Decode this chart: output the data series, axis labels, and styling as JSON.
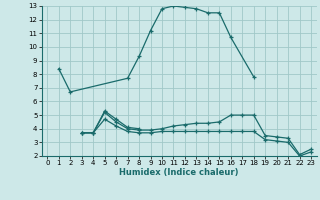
{
  "xlabel": "Humidex (Indice chaleur)",
  "xlim": [
    -0.5,
    23.5
  ],
  "ylim": [
    2,
    13
  ],
  "xticks": [
    0,
    1,
    2,
    3,
    4,
    5,
    6,
    7,
    8,
    9,
    10,
    11,
    12,
    13,
    14,
    15,
    16,
    17,
    18,
    19,
    20,
    21,
    22,
    23
  ],
  "yticks": [
    2,
    3,
    4,
    5,
    6,
    7,
    8,
    9,
    10,
    11,
    12,
    13
  ],
  "bg_color": "#cde8e8",
  "grid_color": "#a0c8c8",
  "line_color": "#1a6b6b",
  "line1_x": [
    1,
    2,
    7,
    8,
    9,
    10,
    11,
    12,
    13,
    14,
    15,
    16,
    18
  ],
  "line1_y": [
    8.4,
    6.7,
    7.7,
    9.3,
    11.2,
    12.8,
    13.0,
    12.9,
    12.8,
    12.5,
    12.5,
    10.7,
    7.8
  ],
  "line2_x": [
    3,
    4,
    5,
    6,
    7,
    8
  ],
  "line2_y": [
    3.7,
    3.7,
    5.3,
    4.7,
    4.1,
    4.0
  ],
  "line3_x": [
    3,
    4,
    5,
    6,
    7,
    8,
    9,
    10,
    11,
    12,
    13,
    14,
    15,
    16,
    17,
    18,
    19,
    20,
    21,
    22,
    23
  ],
  "line3_y": [
    3.7,
    3.7,
    5.2,
    4.5,
    4.0,
    3.9,
    3.9,
    4.0,
    4.2,
    4.3,
    4.4,
    4.4,
    4.5,
    5.0,
    5.0,
    5.0,
    3.5,
    3.4,
    3.3,
    2.1,
    2.5
  ],
  "line4_x": [
    3,
    4,
    5,
    6,
    7,
    8,
    9,
    10,
    11,
    12,
    13,
    14,
    15,
    16,
    17,
    18,
    19,
    20,
    21,
    22,
    23
  ],
  "line4_y": [
    3.7,
    3.7,
    4.7,
    4.2,
    3.8,
    3.7,
    3.7,
    3.8,
    3.8,
    3.8,
    3.8,
    3.8,
    3.8,
    3.8,
    3.8,
    3.8,
    3.2,
    3.1,
    3.0,
    2.0,
    2.3
  ]
}
